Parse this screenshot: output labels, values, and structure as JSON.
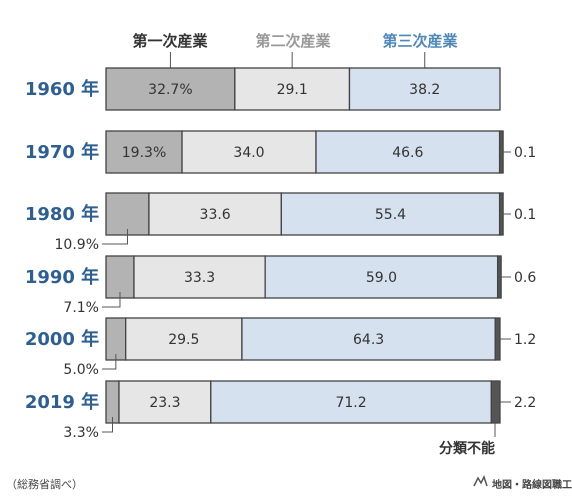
{
  "chart_data": {
    "type": "bar",
    "orientation": "horizontal",
    "stacked": true,
    "percent": true,
    "categories": [
      "1960 年",
      "1970 年",
      "1980 年",
      "1990 年",
      "2000 年",
      "2019 年"
    ],
    "series": [
      {
        "name": "第一次産業",
        "values": [
          32.7,
          19.3,
          10.9,
          7.1,
          5.0,
          3.3
        ],
        "labels": [
          "32.7%",
          "19.3%",
          "10.9%",
          "7.1%",
          "5.0%",
          "3.3%"
        ],
        "label_inside": [
          true,
          true,
          false,
          false,
          false,
          false
        ],
        "color": "#b3b3b3",
        "legend_color": "#333333"
      },
      {
        "name": "第二次産業",
        "values": [
          29.1,
          34.0,
          33.6,
          33.3,
          29.5,
          23.3
        ],
        "labels": [
          "29.1",
          "34.0",
          "33.6",
          "33.3",
          "29.5",
          "23.3"
        ],
        "label_inside": [
          true,
          true,
          true,
          true,
          true,
          true
        ],
        "color": "#e6e6e6",
        "legend_color": "#999999"
      },
      {
        "name": "第三次産業",
        "values": [
          38.2,
          46.6,
          55.4,
          59.0,
          64.3,
          71.2
        ],
        "labels": [
          "38.2",
          "46.6",
          "55.4",
          "59.0",
          "64.3",
          "71.2"
        ],
        "label_inside": [
          true,
          true,
          true,
          true,
          true,
          true
        ],
        "color": "#d5e1ee",
        "legend_color": "#4f87b8"
      },
      {
        "name": "分類不能",
        "values": [
          0,
          0.1,
          0.1,
          0.6,
          1.2,
          2.2
        ],
        "labels": [
          "",
          "0.1",
          "0.1",
          "0.6",
          "1.2",
          "2.2"
        ],
        "label_inside": [
          false,
          false,
          false,
          false,
          false,
          false
        ],
        "color": "#555555"
      }
    ],
    "unclassified_label": "分類不能",
    "xlim": [
      0,
      100
    ]
  },
  "source_note": "（総務省調べ）",
  "credit": "地図・路線図職工所"
}
